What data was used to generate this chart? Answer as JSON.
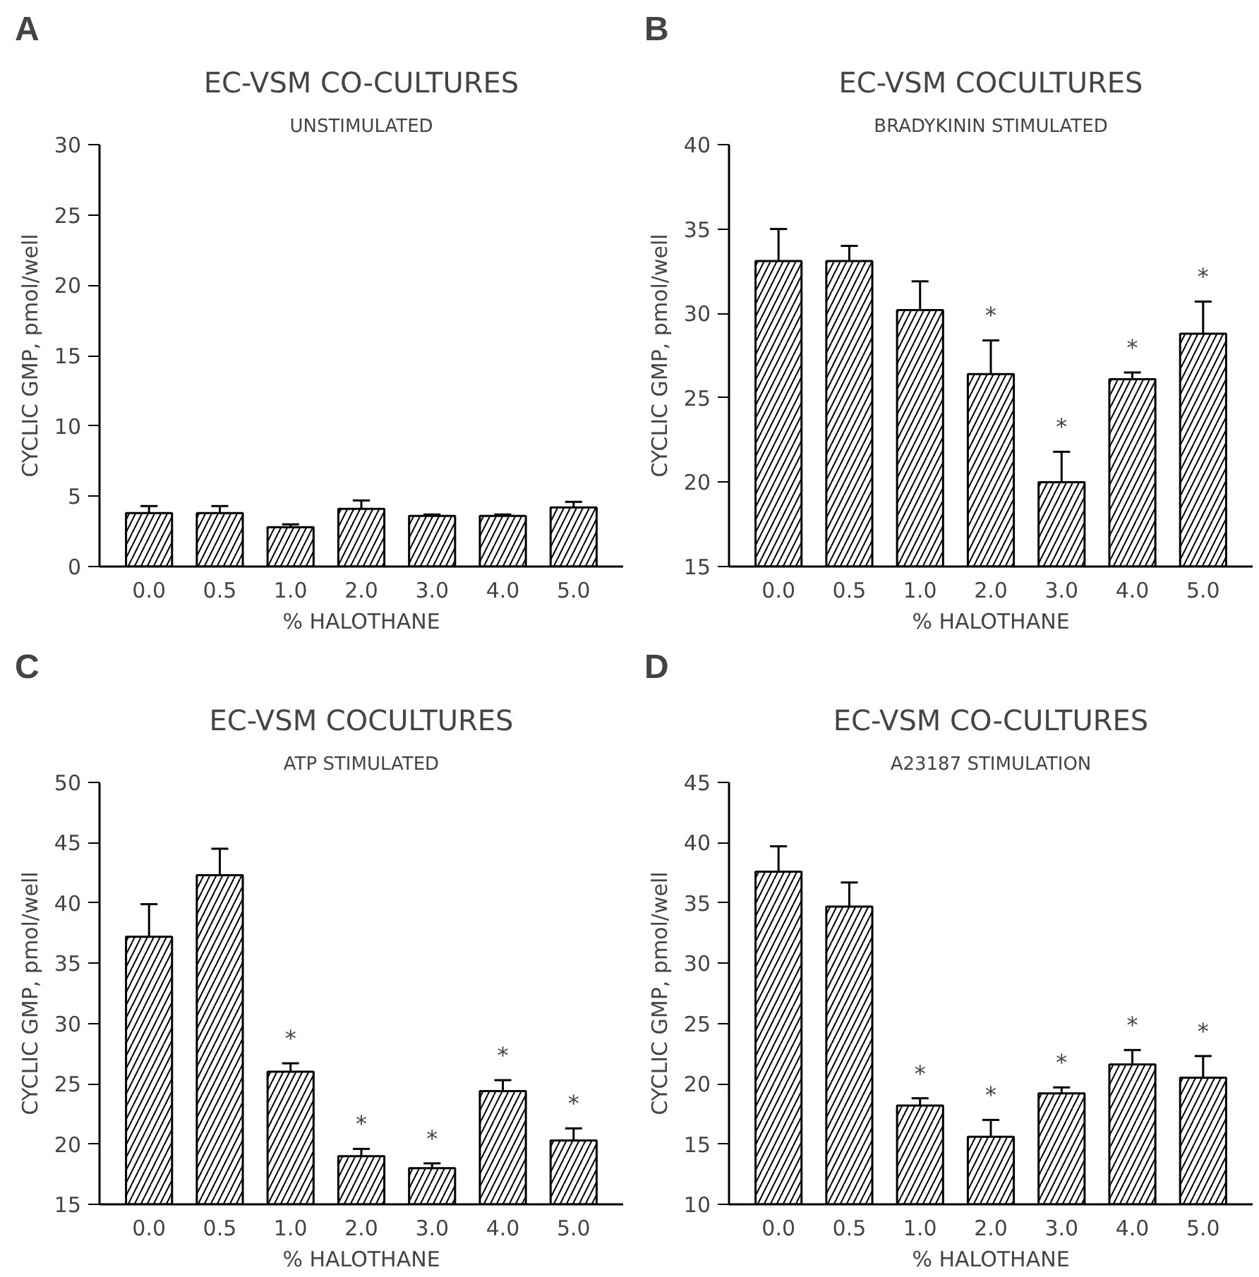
{
  "chart_data": [
    {
      "type": "bar",
      "title": "EC-VSM CO-CULTURES",
      "subtitle": "UNSTIMULATED",
      "xlabel": "% HALOTHANE",
      "ylabel": "CYCLIC GMP, pmol/well",
      "categories": [
        "0.0",
        "0.5",
        "1.0",
        "2.0",
        "3.0",
        "4.0",
        "5.0"
      ],
      "values": [
        3.8,
        3.8,
        2.8,
        4.1,
        3.6,
        3.6,
        4.2
      ],
      "errors": [
        [
          3.8,
          4.3
        ],
        [
          3.8,
          4.3
        ],
        [
          2.8,
          3.0
        ],
        [
          4.1,
          4.7
        ],
        [
          3.6,
          3.7
        ],
        [
          3.6,
          3.7
        ],
        [
          4.2,
          4.6
        ]
      ],
      "color": "#ffffff",
      "ylim": [
        0,
        30
      ],
      "yticks": [
        0,
        5,
        10,
        15,
        20,
        25,
        30
      ],
      "annotations": [
        "A"
      ]
    },
    {
      "type": "bar",
      "title": "EC-VSM COCULTURES",
      "subtitle": "BRADYKININ STIMULATED",
      "xlabel": "% HALOTHANE",
      "ylabel": "CYCLIC GMP, pmol/well",
      "categories": [
        "0.0",
        "0.5",
        "1.0",
        "2.0",
        "3.0",
        "4.0",
        "5.0"
      ],
      "values": [
        33.1,
        33.1,
        30.2,
        26.4,
        20.0,
        26.1,
        28.8
      ],
      "errors": [
        [
          33.1,
          35.0
        ],
        [
          33.1,
          34.0
        ],
        [
          30.2,
          31.9
        ],
        [
          26.4,
          28.4
        ],
        [
          20.0,
          21.8
        ],
        [
          26.1,
          26.5
        ],
        [
          28.8,
          30.7
        ]
      ],
      "value_labels": [
        null,
        null,
        null,
        "*",
        "*",
        "*",
        "*"
      ],
      "color": "#ffffff",
      "ylim": [
        15,
        40
      ],
      "yticks": [
        15,
        20,
        25,
        30,
        35,
        40
      ],
      "annotations": [
        "B"
      ]
    },
    {
      "type": "bar",
      "title": "EC-VSM COCULTURES",
      "subtitle": "ATP STIMULATED",
      "xlabel": "% HALOTHANE",
      "ylabel": "CYCLIC GMP, pmol/well",
      "categories": [
        "0.0",
        "0.5",
        "1.0",
        "2.0",
        "3.0",
        "4.0",
        "5.0"
      ],
      "values": [
        37.2,
        42.3,
        26.0,
        19.0,
        18.0,
        24.4,
        20.3
      ],
      "errors": [
        [
          37.2,
          39.9
        ],
        [
          42.3,
          44.5
        ],
        [
          26.0,
          26.7
        ],
        [
          19.0,
          19.6
        ],
        [
          18.0,
          18.4
        ],
        [
          24.4,
          25.3
        ],
        [
          20.3,
          21.3
        ]
      ],
      "value_labels": [
        null,
        null,
        "*",
        "*",
        "*",
        "*",
        "*"
      ],
      "color": "#ffffff",
      "ylim": [
        15,
        50
      ],
      "yticks": [
        15,
        20,
        25,
        30,
        35,
        40,
        45,
        50
      ],
      "annotations": [
        "C"
      ]
    },
    {
      "type": "bar",
      "title": "EC-VSM CO-CULTURES",
      "subtitle": "A23187 STIMULATION",
      "xlabel": "% HALOTHANE",
      "ylabel": "CYCLIC GMP, pmol/well",
      "categories": [
        "0.0",
        "0.5",
        "1.0",
        "2.0",
        "3.0",
        "4.0",
        "5.0"
      ],
      "values": [
        37.6,
        34.7,
        18.2,
        15.6,
        19.2,
        21.6,
        20.5
      ],
      "errors": [
        [
          37.6,
          39.7
        ],
        [
          34.7,
          36.7
        ],
        [
          18.2,
          18.8
        ],
        [
          15.6,
          17.0
        ],
        [
          19.2,
          19.7
        ],
        [
          21.6,
          22.8
        ],
        [
          20.5,
          22.3
        ]
      ],
      "value_labels": [
        null,
        null,
        "*",
        "*",
        "*",
        "*",
        "*"
      ],
      "color": "#ffffff",
      "ylim": [
        10,
        45
      ],
      "yticks": [
        10,
        15,
        20,
        25,
        30,
        35,
        40,
        45
      ],
      "annotations": [
        "D"
      ]
    }
  ]
}
